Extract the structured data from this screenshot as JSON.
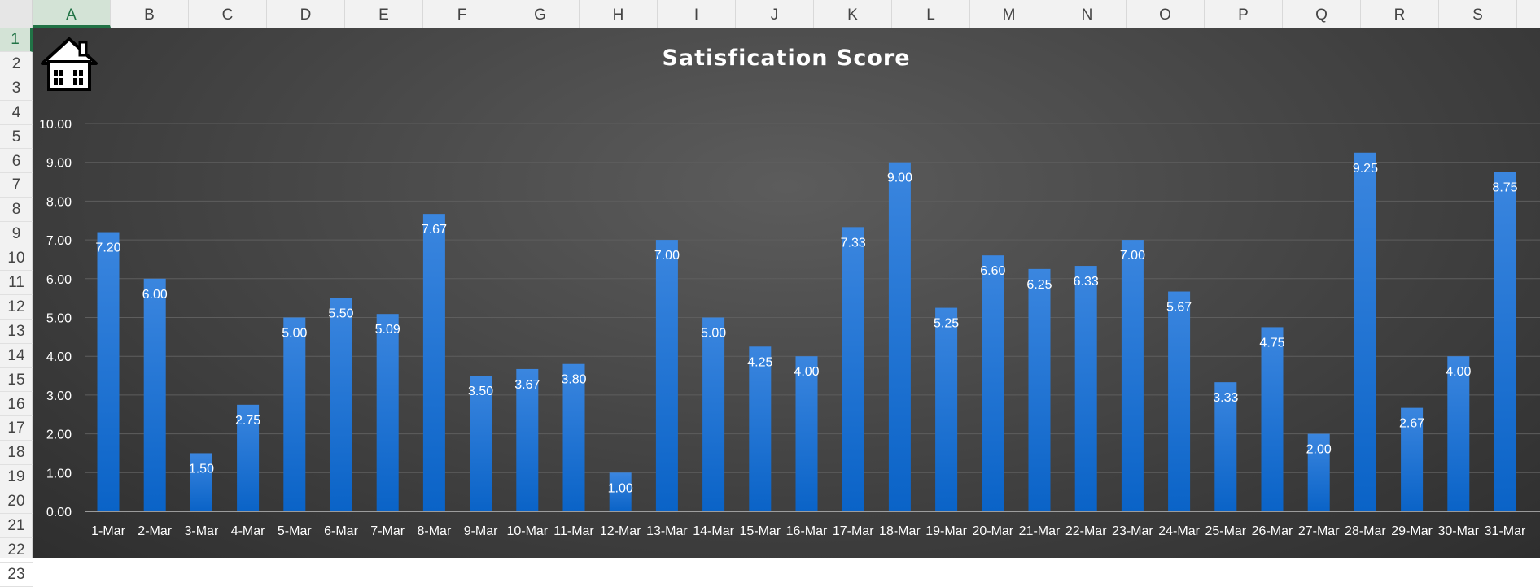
{
  "spreadsheet": {
    "columns": [
      "A",
      "B",
      "C",
      "D",
      "E",
      "F",
      "G",
      "H",
      "I",
      "J",
      "K",
      "L",
      "M",
      "N",
      "O",
      "P",
      "Q",
      "R",
      "S"
    ],
    "active_column": "A",
    "rows": [
      "1",
      "2",
      "3",
      "4",
      "5",
      "6",
      "7",
      "8",
      "9",
      "10",
      "11",
      "12",
      "13",
      "14",
      "15",
      "16",
      "17",
      "18",
      "19",
      "20",
      "21",
      "22",
      "23"
    ],
    "active_row": "1"
  },
  "colors": {
    "bar_top": "#3b86df",
    "bar_bottom": "#0a63c7",
    "chart_bg": "#474747",
    "text": "#ffffff",
    "gridline": "#5e5e5e"
  },
  "chart_data": {
    "type": "bar",
    "title": "Satisfication Score",
    "xlabel": "",
    "ylabel": "",
    "ylim": [
      0,
      10
    ],
    "yticks": [
      "0.00",
      "1.00",
      "2.00",
      "3.00",
      "4.00",
      "5.00",
      "6.00",
      "7.00",
      "8.00",
      "9.00",
      "10.00"
    ],
    "grid": true,
    "categories": [
      "1-Mar",
      "2-Mar",
      "3-Mar",
      "4-Mar",
      "5-Mar",
      "6-Mar",
      "7-Mar",
      "8-Mar",
      "9-Mar",
      "10-Mar",
      "11-Mar",
      "12-Mar",
      "13-Mar",
      "14-Mar",
      "15-Mar",
      "16-Mar",
      "17-Mar",
      "18-Mar",
      "19-Mar",
      "20-Mar",
      "21-Mar",
      "22-Mar",
      "23-Mar",
      "24-Mar",
      "25-Mar",
      "26-Mar",
      "27-Mar",
      "28-Mar",
      "29-Mar",
      "30-Mar",
      "31-Mar"
    ],
    "values": [
      7.2,
      6.0,
      1.5,
      2.75,
      5.0,
      5.5,
      5.09,
      7.67,
      3.5,
      3.67,
      3.8,
      1.0,
      7.0,
      5.0,
      4.25,
      4.0,
      7.33,
      9.0,
      5.25,
      6.6,
      6.25,
      6.33,
      7.0,
      5.67,
      3.33,
      4.75,
      2.0,
      9.25,
      2.67,
      4.0,
      8.75
    ],
    "data_labels": [
      "7.20",
      "6.00",
      "1.50",
      "2.75",
      "5.00",
      "5.50",
      "5.09",
      "7.67",
      "3.50",
      "3.67",
      "3.80",
      "1.00",
      "7.00",
      "5.00",
      "4.25",
      "4.00",
      "7.33",
      "9.00",
      "5.25",
      "6.60",
      "6.25",
      "6.33",
      "7.00",
      "5.67",
      "3.33",
      "4.75",
      "2.00",
      "9.25",
      "2.67",
      "4.00",
      "8.75"
    ]
  },
  "home_icon": "home-icon"
}
